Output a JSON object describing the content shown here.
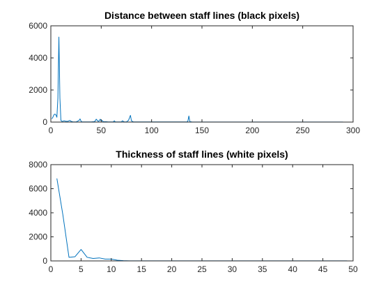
{
  "chart_data": [
    {
      "type": "line",
      "title": "Distance between staff lines (black pixels)",
      "xlabel": "",
      "ylabel": "",
      "xlim": [
        0,
        300
      ],
      "ylim": [
        0,
        6000
      ],
      "xticks": [
        0,
        50,
        100,
        150,
        200,
        250,
        300
      ],
      "yticks": [
        0,
        2000,
        4000,
        6000
      ],
      "grid": false,
      "series": [
        {
          "color": "#0072BD",
          "x": [
            1,
            2,
            3,
            4,
            5,
            6,
            7,
            8,
            9,
            10,
            11,
            12,
            13,
            15,
            17,
            18,
            19,
            20,
            22,
            25,
            28,
            29,
            30,
            31,
            33,
            40,
            43,
            44,
            45,
            47,
            48,
            49,
            50,
            51,
            52,
            55,
            57,
            60,
            62,
            63,
            64,
            67,
            70,
            71,
            73,
            75,
            77,
            78,
            79,
            80,
            82,
            85,
            90,
            95,
            100,
            110,
            120,
            130,
            135,
            136,
            137,
            138,
            140,
            150,
            160,
            170,
            180,
            190,
            200,
            210,
            220,
            230,
            240,
            250,
            260,
            270,
            280,
            290
          ],
          "y": [
            200,
            300,
            450,
            500,
            450,
            300,
            1500,
            5300,
            1500,
            100,
            50,
            50,
            80,
            50,
            50,
            80,
            100,
            50,
            10,
            10,
            100,
            200,
            50,
            10,
            10,
            10,
            30,
            60,
            180,
            50,
            70,
            180,
            60,
            100,
            20,
            20,
            10,
            10,
            10,
            80,
            10,
            10,
            10,
            80,
            10,
            10,
            100,
            250,
            420,
            80,
            10,
            10,
            10,
            10,
            10,
            10,
            10,
            10,
            10,
            50,
            380,
            30,
            10,
            5,
            5,
            5,
            5,
            5,
            5,
            5,
            5,
            5,
            5,
            5,
            5,
            5,
            5,
            5
          ]
        }
      ]
    },
    {
      "type": "line",
      "title": "Thickness of staff lines (white pixels)",
      "xlabel": "",
      "ylabel": "",
      "xlim": [
        0,
        50
      ],
      "ylim": [
        0,
        8000
      ],
      "xticks": [
        0,
        5,
        10,
        15,
        20,
        25,
        30,
        35,
        40,
        45,
        50
      ],
      "yticks": [
        0,
        2000,
        4000,
        6000,
        8000
      ],
      "grid": false,
      "series": [
        {
          "color": "#0072BD",
          "x": [
            1,
            2,
            3,
            4,
            5,
            6,
            7,
            8,
            9,
            10,
            11,
            12,
            13,
            14,
            15,
            16,
            17,
            18,
            19,
            20,
            21,
            22,
            23,
            24,
            25,
            26,
            27,
            28,
            29,
            30,
            31,
            32,
            33,
            34,
            35,
            36,
            37,
            38,
            39,
            40,
            41,
            42,
            43,
            44,
            45,
            46,
            47,
            48,
            49
          ],
          "y": [
            6850,
            3800,
            300,
            350,
            950,
            300,
            200,
            250,
            150,
            150,
            60,
            20,
            10,
            5,
            5,
            5,
            5,
            5,
            5,
            5,
            5,
            5,
            5,
            5,
            5,
            5,
            5,
            5,
            5,
            5,
            5,
            5,
            5,
            5,
            5,
            5,
            5,
            5,
            5,
            5,
            5,
            5,
            5,
            5,
            5,
            5,
            5,
            5,
            5
          ]
        }
      ]
    }
  ]
}
